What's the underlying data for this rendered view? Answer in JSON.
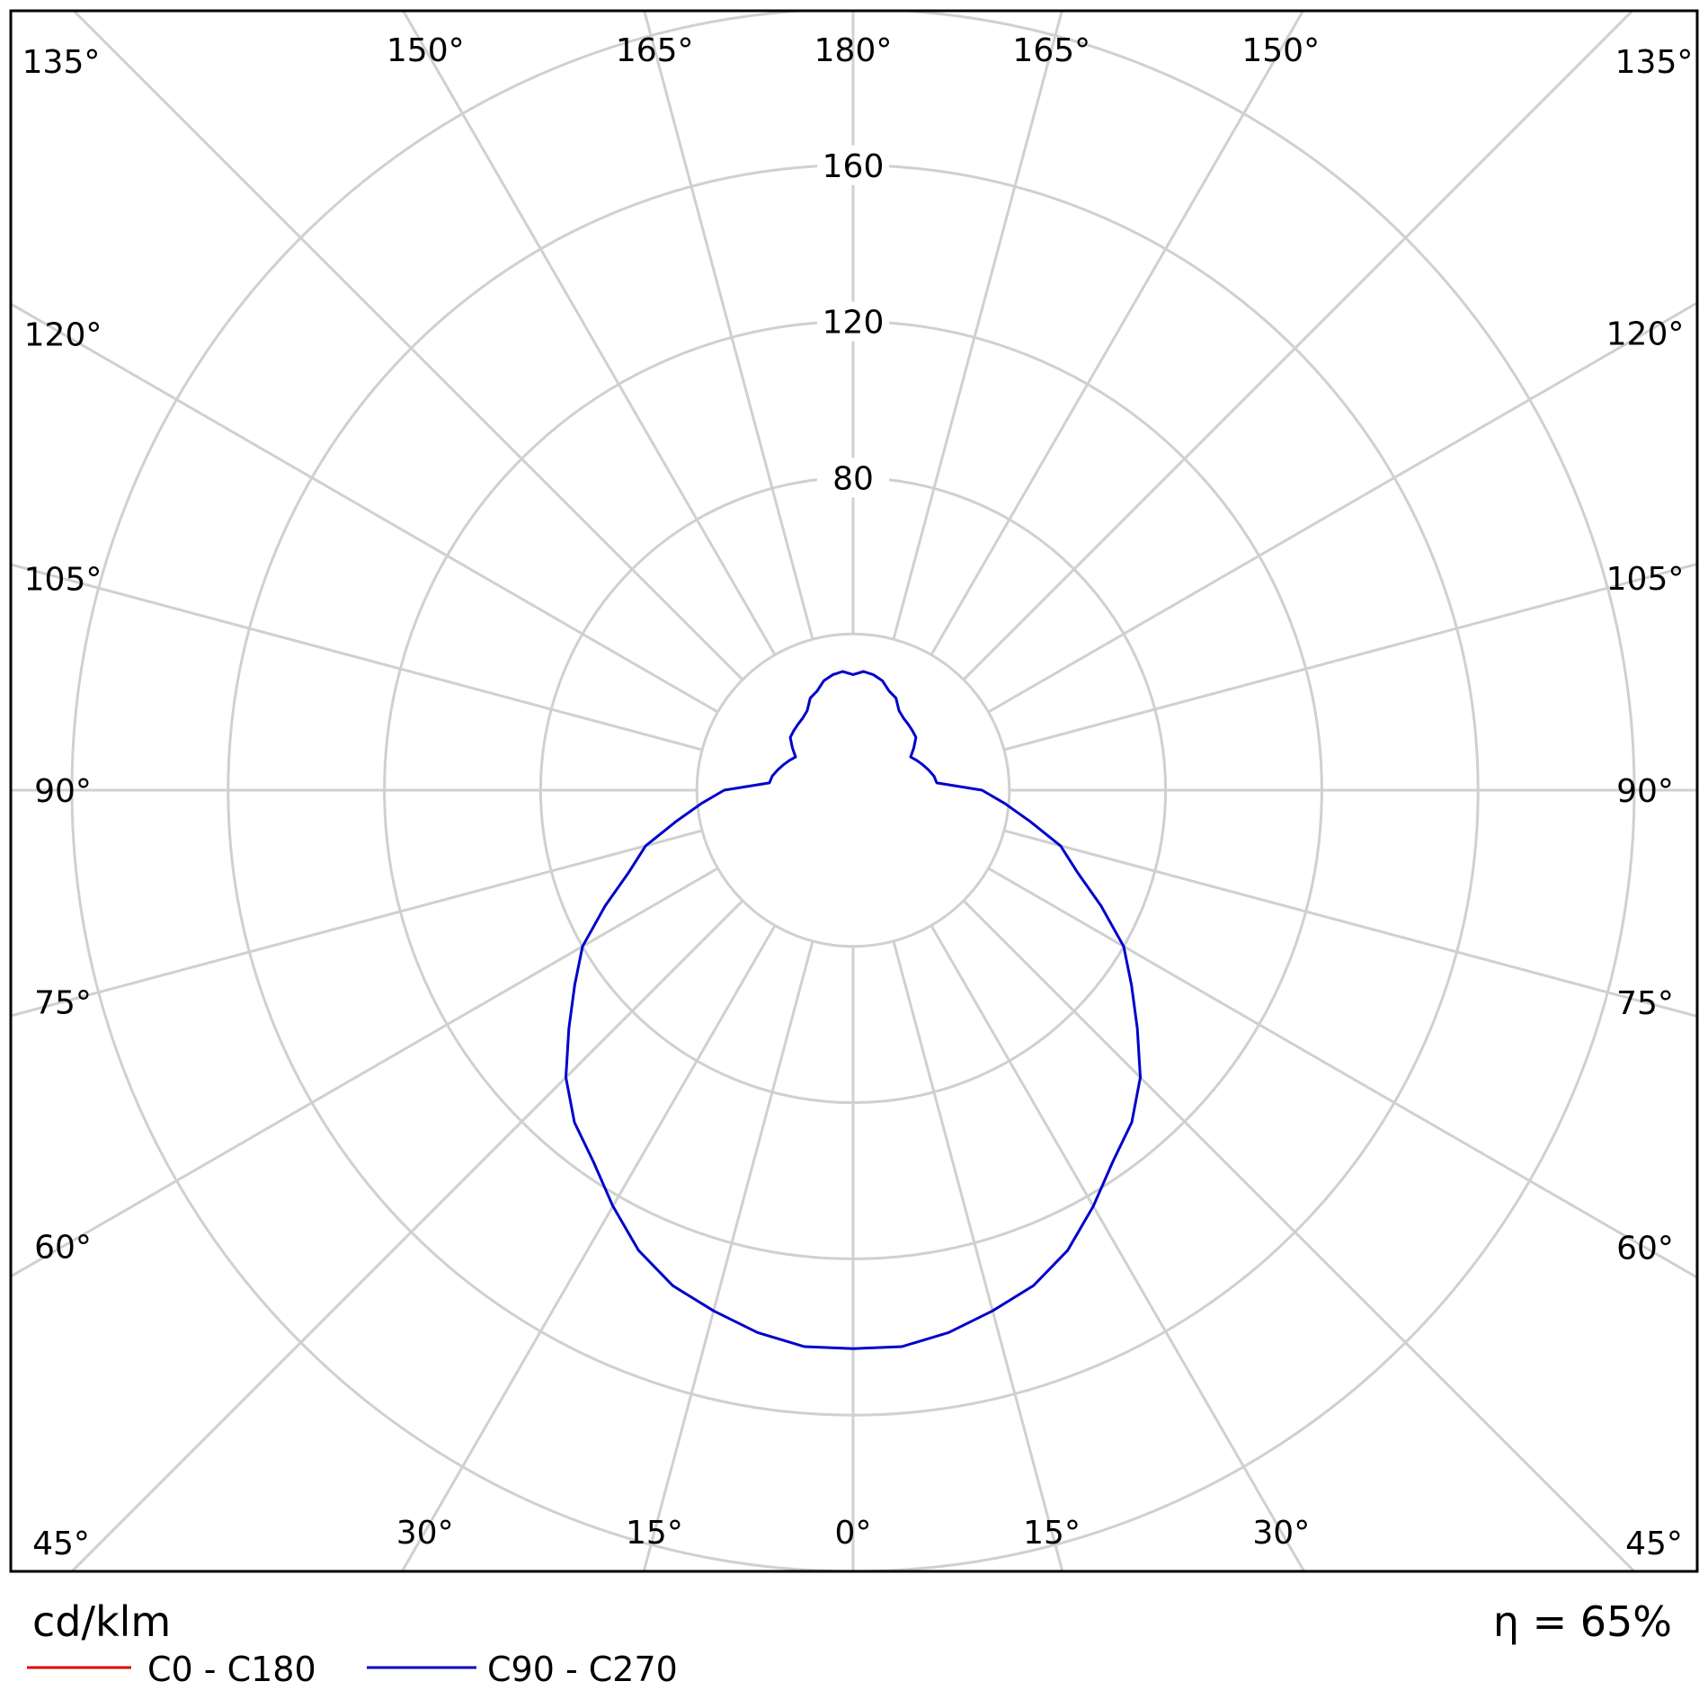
{
  "chart_data": {
    "type": "polar",
    "unit_label": "cd/klm",
    "efficiency_label": "η = 65%",
    "radial_ticks": [
      40,
      80,
      120,
      160,
      200
    ],
    "radial_tick_labels": [
      "80",
      "120",
      "160"
    ],
    "angle_tick_labels": {
      "left": [
        "0°",
        "15°",
        "30°",
        "45°",
        "60°",
        "75°",
        "90°",
        "105°",
        "120°",
        "135°",
        "150°",
        "165°",
        "180°"
      ],
      "right": [
        "15°",
        "30°",
        "45°",
        "60°",
        "75°",
        "90°",
        "105°",
        "120°",
        "135°",
        "150°",
        "165°"
      ]
    },
    "grid": true,
    "legend_placement": "bottom-left",
    "series": [
      {
        "name": "C0 - C180",
        "color": "#e00000",
        "visible_in_plot": false
      },
      {
        "name": "C90 - C270",
        "color": "#0000cc",
        "gamma": [
          0,
          5,
          10,
          15,
          20,
          25,
          30,
          35,
          40,
          45,
          50,
          55,
          60,
          65,
          70,
          75,
          80,
          85,
          90,
          95,
          100,
          105,
          110,
          115,
          120,
          125,
          130,
          135,
          140,
          145,
          150,
          155,
          160,
          165,
          170,
          175,
          180
        ],
        "values": [
          143,
          143,
          141,
          138,
          135,
          130,
          123,
          116,
          111,
          104,
          95,
          87,
          80,
          70,
          61,
          55,
          46,
          39,
          33,
          21.5,
          21,
          20,
          19,
          18,
          17,
          19,
          21,
          21.5,
          22,
          22.5,
          23.5,
          26,
          27,
          29,
          30,
          30.5,
          29.6
        ]
      }
    ]
  }
}
